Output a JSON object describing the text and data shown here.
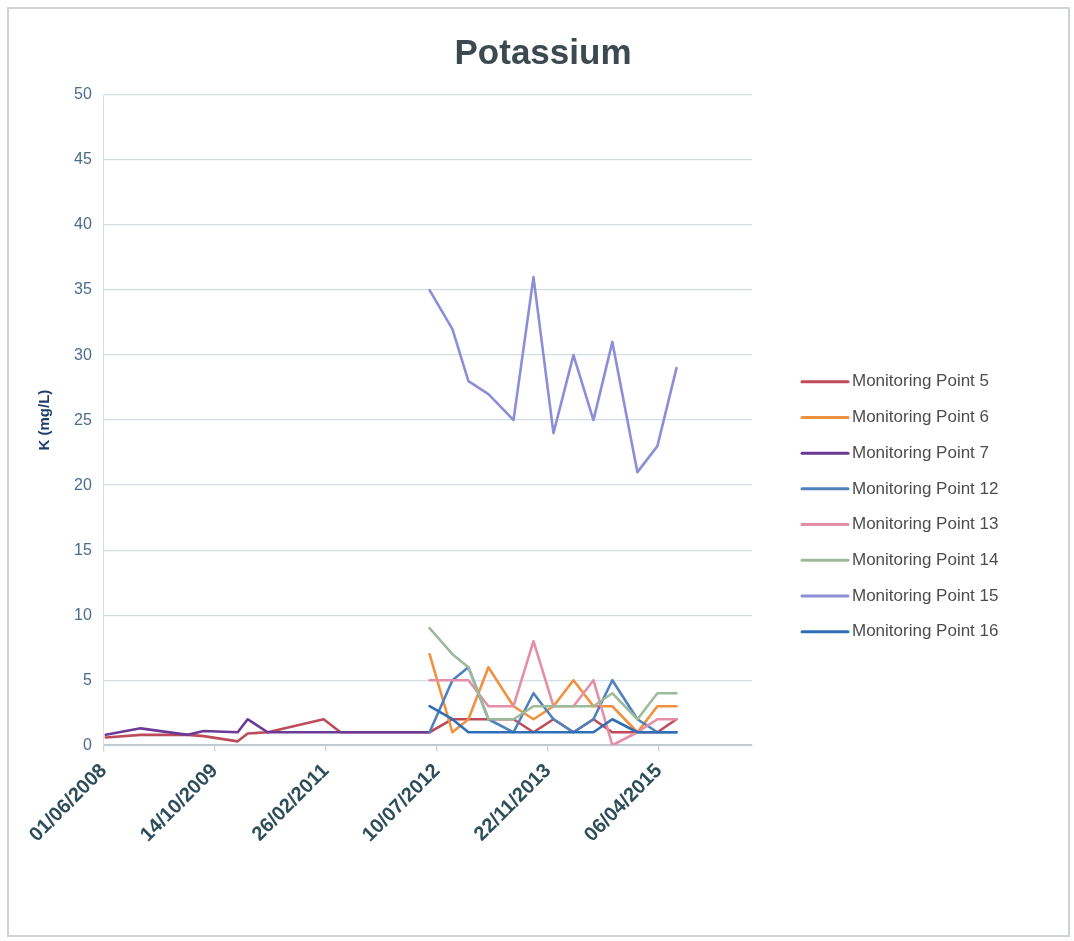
{
  "chart_data": {
    "type": "line",
    "title": "Potassium",
    "ylabel": "K (mg/L)",
    "xlim": [
      "2008-06-01",
      "2016-05-29"
    ],
    "xticks": [
      {
        "value": "2008-06-01",
        "label": "01/06/2008"
      },
      {
        "value": "2009-10-14",
        "label": "14/10/2009"
      },
      {
        "value": "2011-02-26",
        "label": "26/02/2011"
      },
      {
        "value": "2012-07-10",
        "label": "10/07/2012"
      },
      {
        "value": "2013-11-22",
        "label": "22/11/2013"
      },
      {
        "value": "2015-04-06",
        "label": "06/04/2015"
      }
    ],
    "ylim": [
      0,
      50
    ],
    "yticks": [
      0,
      5,
      10,
      15,
      20,
      25,
      30,
      35,
      40,
      45,
      50
    ],
    "grid": "y",
    "legend": "right",
    "series": [
      {
        "name": "Monitoring Point 5",
        "color": "#be4b5a",
        "x": [
          "2008-06-10",
          "2008-11-14",
          "2009-06-14",
          "2009-08-25",
          "2010-01-25",
          "2010-03-11",
          "2010-06-09",
          "2011-02-16",
          "2011-05-03",
          "2012-06-07",
          "2012-09-18",
          "2012-11-29",
          "2013-02-27",
          "2013-06-20",
          "2013-09-18",
          "2013-12-17",
          "2014-03-17",
          "2014-06-15",
          "2014-09-08",
          "2014-12-30",
          "2015-03-30",
          "2015-06-24"
        ],
        "values": [
          0.6,
          0.8,
          0.8,
          0.7,
          0.3,
          0.9,
          1,
          2,
          1,
          1,
          2,
          2,
          2,
          2,
          1,
          2,
          1,
          2,
          1,
          1,
          1,
          2
        ]
      },
      {
        "name": "Monitoring Point 6",
        "color": "#f0913f",
        "x": [
          "2012-06-07",
          "2012-09-18",
          "2012-11-29",
          "2013-02-27",
          "2013-06-20",
          "2013-09-18",
          "2013-12-17",
          "2014-03-17",
          "2014-06-15",
          "2014-09-08",
          "2014-12-30",
          "2015-03-30",
          "2015-06-24"
        ],
        "values": [
          7,
          1,
          2,
          6,
          3,
          2,
          3,
          5,
          3,
          3,
          1,
          3,
          3
        ]
      },
      {
        "name": "Monitoring Point 7",
        "color": "#6b3a96",
        "x": [
          "2008-06-10",
          "2008-11-14",
          "2009-06-14",
          "2009-08-25",
          "2010-01-25",
          "2010-03-11",
          "2010-06-09",
          "2011-02-16",
          "2011-05-03",
          "2012-06-07"
        ],
        "values": [
          0.8,
          1.3,
          0.8,
          1.1,
          1,
          2,
          1,
          1,
          1,
          1
        ]
      },
      {
        "name": "Monitoring Point 12",
        "color": "#4f81bd",
        "x": [
          "2012-06-07",
          "2012-09-18",
          "2012-11-29",
          "2013-02-27",
          "2013-06-20",
          "2013-09-18",
          "2013-12-17",
          "2014-03-17",
          "2014-06-15",
          "2014-09-08",
          "2014-12-30",
          "2015-03-30",
          "2015-06-24"
        ],
        "values": [
          1,
          5,
          6,
          2,
          1,
          4,
          2,
          1,
          2,
          5,
          2,
          1,
          1
        ]
      },
      {
        "name": "Monitoring Point 13",
        "color": "#e38fa8",
        "x": [
          "2012-06-07",
          "2012-09-18",
          "2012-11-29",
          "2013-02-27",
          "2013-06-20",
          "2013-09-18",
          "2013-12-17",
          "2014-03-17",
          "2014-06-15",
          "2014-09-08",
          "2014-12-30",
          "2015-03-30",
          "2015-06-24"
        ],
        "values": [
          5,
          5,
          5,
          3,
          3,
          8,
          3,
          3,
          5,
          0,
          1,
          2,
          2
        ]
      },
      {
        "name": "Monitoring Point 14",
        "color": "#9dbb9a",
        "x": [
          "2012-06-07",
          "2012-09-18",
          "2012-11-29",
          "2013-02-27",
          "2013-06-20",
          "2013-09-18",
          "2013-12-17",
          "2014-03-17",
          "2014-06-15",
          "2014-09-08",
          "2014-12-30",
          "2015-03-30",
          "2015-06-24"
        ],
        "values": [
          9,
          7,
          6,
          2,
          2,
          3,
          3,
          3,
          3,
          4,
          2,
          4,
          4
        ]
      },
      {
        "name": "Monitoring Point 15",
        "color": "#8c8fd6",
        "x": [
          "2012-06-07",
          "2012-09-18",
          "2012-11-29",
          "2013-02-27",
          "2013-06-20",
          "2013-09-18",
          "2013-12-17",
          "2014-03-17",
          "2014-06-15",
          "2014-09-08",
          "2014-12-30",
          "2015-03-30",
          "2015-06-24"
        ],
        "values": [
          35,
          32,
          28,
          27,
          25,
          36,
          24,
          30,
          25,
          31,
          21,
          23,
          29
        ]
      },
      {
        "name": "Monitoring Point 16",
        "color": "#2f6fb7",
        "x": [
          "2012-06-07",
          "2012-09-18",
          "2012-11-29",
          "2013-02-27",
          "2013-06-20",
          "2013-09-18",
          "2013-12-17",
          "2014-03-17",
          "2014-06-15",
          "2014-09-08",
          "2014-12-30",
          "2015-03-30",
          "2015-06-24"
        ],
        "values": [
          3,
          2,
          1,
          1,
          1,
          1,
          1,
          1,
          1,
          2,
          1,
          1,
          1
        ]
      }
    ]
  }
}
